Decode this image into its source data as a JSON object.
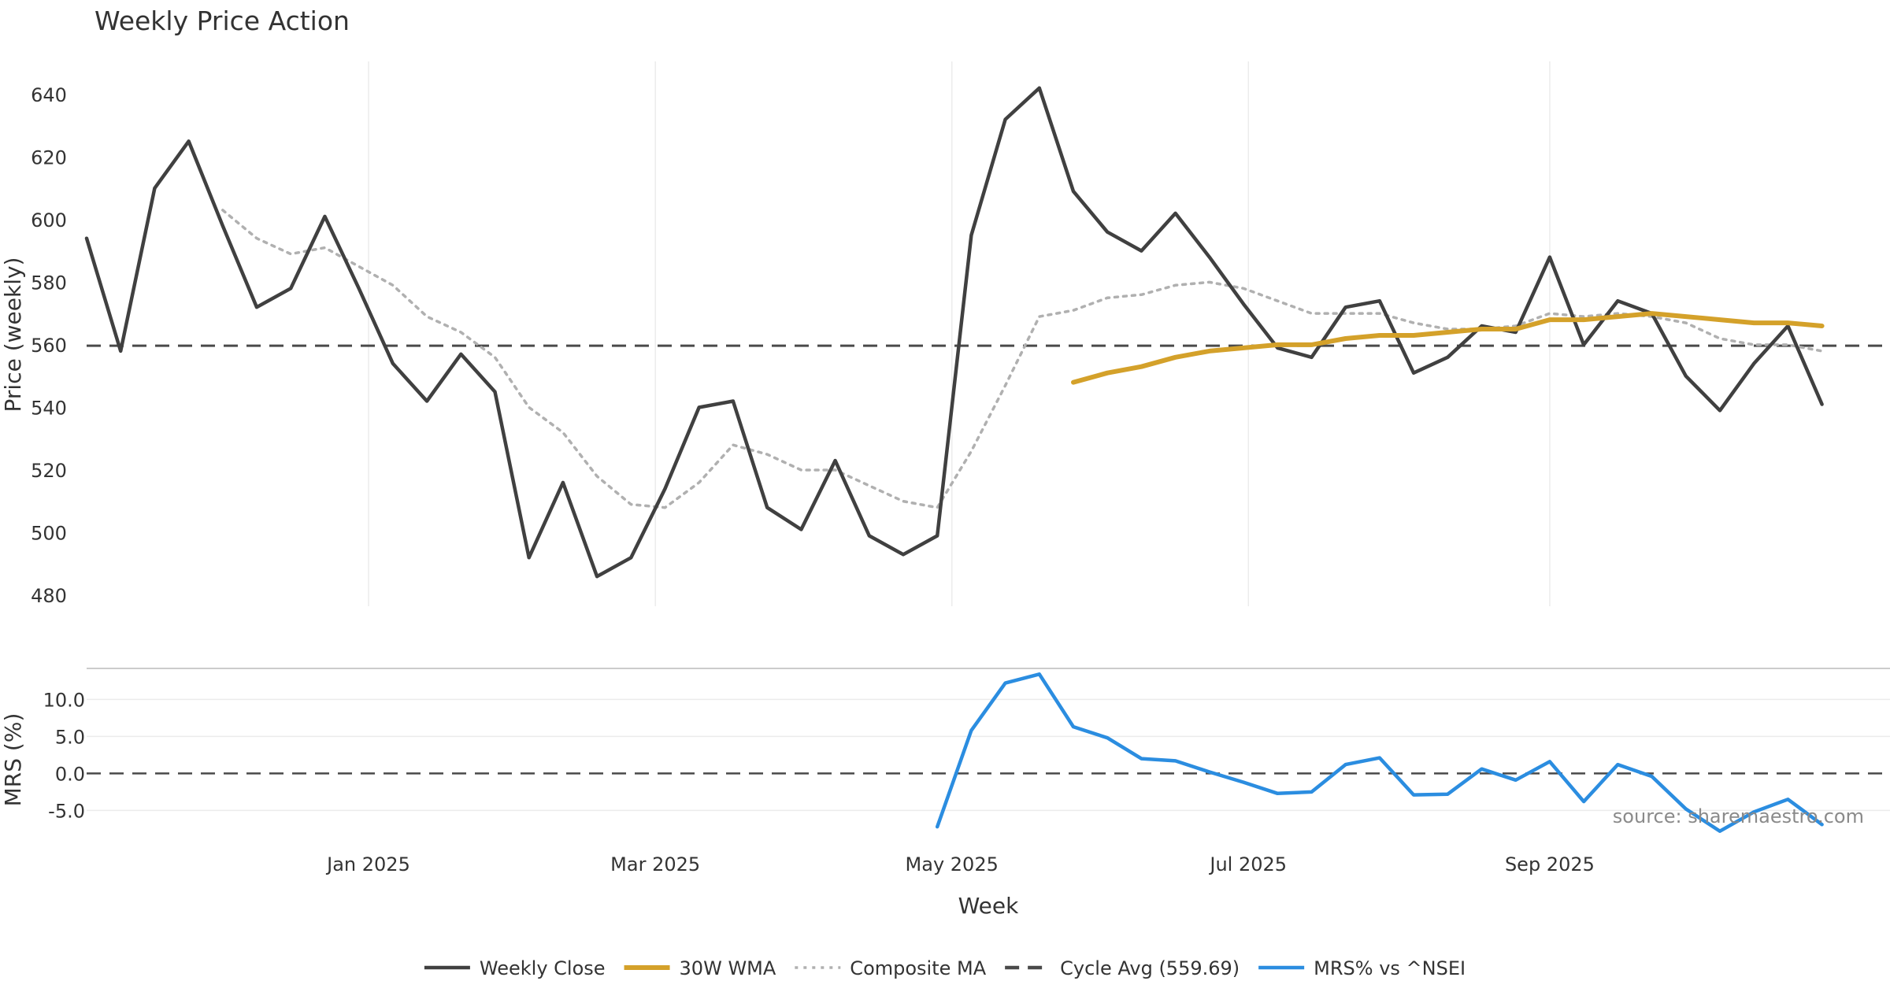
{
  "chart_data": {
    "type": "line",
    "title": "Weekly Price Action",
    "source": "source: sharemaestro.com",
    "xlabel": "Week",
    "x_ticks": [
      "Jan 2025",
      "Mar 2025",
      "May 2025",
      "Jul 2025",
      "Sep 2025"
    ],
    "x_tick_dates": [
      "2025-01-01",
      "2025-03-01",
      "2025-05-01",
      "2025-07-01",
      "2025-09-01"
    ],
    "x_range": [
      "2024-11-04",
      "2025-11-10"
    ],
    "grid": "vertical lines at month ticks; horizontal lines in lower panel",
    "legend_position": "bottom-center",
    "colors": {
      "weekly_close": "#404040",
      "wma30": "#d4a12a",
      "composite_ma": "#b0b0b0",
      "cycle_avg": "#4a4a4a",
      "mrs": "#2b8de0"
    },
    "price_panel": {
      "ylabel": "Price (weekly)",
      "ylim": [
        478,
        650
      ],
      "y_ticks": [
        480,
        500,
        520,
        540,
        560,
        580,
        600,
        620,
        640
      ],
      "cycle_avg": 559.69,
      "series": [
        {
          "key": "weekly_close",
          "name": "Weekly Close",
          "style": "solid",
          "points": [
            [
              "2024-11-04",
              594
            ],
            [
              "2024-11-11",
              558
            ],
            [
              "2024-11-18",
              610
            ],
            [
              "2024-11-25",
              625
            ],
            [
              "2024-12-02",
              598
            ],
            [
              "2024-12-09",
              572
            ],
            [
              "2024-12-16",
              578
            ],
            [
              "2024-12-23",
              601
            ],
            [
              "2024-12-30",
              578
            ],
            [
              "2025-01-06",
              554
            ],
            [
              "2025-01-13",
              542
            ],
            [
              "2025-01-20",
              557
            ],
            [
              "2025-01-27",
              545
            ],
            [
              "2025-02-03",
              492
            ],
            [
              "2025-02-10",
              516
            ],
            [
              "2025-02-17",
              486
            ],
            [
              "2025-02-24",
              492
            ],
            [
              "2025-03-03",
              514
            ],
            [
              "2025-03-10",
              540
            ],
            [
              "2025-03-17",
              542
            ],
            [
              "2025-03-24",
              508
            ],
            [
              "2025-03-31",
              501
            ],
            [
              "2025-04-07",
              523
            ],
            [
              "2025-04-14",
              499
            ],
            [
              "2025-04-21",
              493
            ],
            [
              "2025-04-28",
              499
            ],
            [
              "2025-05-05",
              595
            ],
            [
              "2025-05-12",
              632
            ],
            [
              "2025-05-19",
              642
            ],
            [
              "2025-05-26",
              609
            ],
            [
              "2025-06-02",
              596
            ],
            [
              "2025-06-09",
              590
            ],
            [
              "2025-06-16",
              602
            ],
            [
              "2025-06-23",
              588
            ],
            [
              "2025-06-30",
              573
            ],
            [
              "2025-07-07",
              559
            ],
            [
              "2025-07-14",
              556
            ],
            [
              "2025-07-21",
              572
            ],
            [
              "2025-07-28",
              574
            ],
            [
              "2025-08-04",
              551
            ],
            [
              "2025-08-11",
              556
            ],
            [
              "2025-08-18",
              566
            ],
            [
              "2025-08-25",
              564
            ],
            [
              "2025-09-01",
              588
            ],
            [
              "2025-09-08",
              560
            ],
            [
              "2025-09-15",
              574
            ],
            [
              "2025-09-22",
              570
            ],
            [
              "2025-09-29",
              550
            ],
            [
              "2025-10-06",
              539
            ],
            [
              "2025-10-13",
              554
            ],
            [
              "2025-10-20",
              566
            ],
            [
              "2025-10-27",
              541
            ]
          ]
        },
        {
          "key": "composite_ma",
          "name": "Composite MA",
          "style": "dotted",
          "points": [
            [
              "2024-12-02",
              603
            ],
            [
              "2024-12-09",
              594
            ],
            [
              "2024-12-16",
              589
            ],
            [
              "2024-12-23",
              591
            ],
            [
              "2024-12-30",
              585
            ],
            [
              "2025-01-06",
              579
            ],
            [
              "2025-01-13",
              569
            ],
            [
              "2025-01-20",
              564
            ],
            [
              "2025-01-27",
              556
            ],
            [
              "2025-02-03",
              540
            ],
            [
              "2025-02-10",
              532
            ],
            [
              "2025-02-17",
              518
            ],
            [
              "2025-02-24",
              509
            ],
            [
              "2025-03-03",
              508
            ],
            [
              "2025-03-10",
              516
            ],
            [
              "2025-03-17",
              528
            ],
            [
              "2025-03-24",
              525
            ],
            [
              "2025-03-31",
              520
            ],
            [
              "2025-04-07",
              520
            ],
            [
              "2025-04-14",
              515
            ],
            [
              "2025-04-21",
              510
            ],
            [
              "2025-04-28",
              508
            ],
            [
              "2025-05-05",
              526
            ],
            [
              "2025-05-12",
              547
            ],
            [
              "2025-05-19",
              569
            ],
            [
              "2025-05-26",
              571
            ],
            [
              "2025-06-02",
              575
            ],
            [
              "2025-06-09",
              576
            ],
            [
              "2025-06-16",
              579
            ],
            [
              "2025-06-23",
              580
            ],
            [
              "2025-06-30",
              578
            ],
            [
              "2025-07-07",
              574
            ],
            [
              "2025-07-14",
              570
            ],
            [
              "2025-07-21",
              570
            ],
            [
              "2025-07-28",
              570
            ],
            [
              "2025-08-04",
              567
            ],
            [
              "2025-08-11",
              565
            ],
            [
              "2025-08-18",
              565
            ],
            [
              "2025-08-25",
              566
            ],
            [
              "2025-09-01",
              570
            ],
            [
              "2025-09-08",
              569
            ],
            [
              "2025-09-15",
              570
            ],
            [
              "2025-09-22",
              569
            ],
            [
              "2025-09-29",
              567
            ],
            [
              "2025-10-06",
              562
            ],
            [
              "2025-10-13",
              560
            ],
            [
              "2025-10-20",
              560
            ],
            [
              "2025-10-27",
              558
            ]
          ]
        },
        {
          "key": "wma30",
          "name": "30W WMA",
          "style": "solid",
          "points": [
            [
              "2025-05-26",
              548
            ],
            [
              "2025-06-02",
              551
            ],
            [
              "2025-06-09",
              553
            ],
            [
              "2025-06-16",
              556
            ],
            [
              "2025-06-23",
              558
            ],
            [
              "2025-06-30",
              559
            ],
            [
              "2025-07-07",
              560
            ],
            [
              "2025-07-14",
              560
            ],
            [
              "2025-07-21",
              562
            ],
            [
              "2025-07-28",
              563
            ],
            [
              "2025-08-04",
              563
            ],
            [
              "2025-08-11",
              564
            ],
            [
              "2025-08-18",
              565
            ],
            [
              "2025-08-25",
              565
            ],
            [
              "2025-09-01",
              568
            ],
            [
              "2025-09-08",
              568
            ],
            [
              "2025-09-15",
              569
            ],
            [
              "2025-09-22",
              570
            ],
            [
              "2025-09-29",
              569
            ],
            [
              "2025-10-06",
              568
            ],
            [
              "2025-10-13",
              567
            ],
            [
              "2025-10-20",
              567
            ],
            [
              "2025-10-27",
              566
            ]
          ]
        }
      ]
    },
    "mrs_panel": {
      "ylabel": "MRS (%)",
      "ylim": [
        -9,
        14.5
      ],
      "y_ticks": [
        -5.0,
        0.0,
        5.0,
        10.0
      ],
      "y_tick_labels": [
        "-5.0",
        "0.0",
        "5.0",
        "10.0"
      ],
      "zero_line": 0,
      "series": [
        {
          "key": "mrs",
          "name": "MRS% vs ^NSEI",
          "style": "solid",
          "points": [
            [
              "2025-04-28",
              -7.2
            ],
            [
              "2025-05-05",
              5.8
            ],
            [
              "2025-05-12",
              12.2
            ],
            [
              "2025-05-19",
              13.4
            ],
            [
              "2025-05-26",
              6.3
            ],
            [
              "2025-06-02",
              4.8
            ],
            [
              "2025-06-09",
              2.0
            ],
            [
              "2025-06-16",
              1.7
            ],
            [
              "2025-06-23",
              0.2
            ],
            [
              "2025-06-30",
              -1.2
            ],
            [
              "2025-07-07",
              -2.7
            ],
            [
              "2025-07-14",
              -2.5
            ],
            [
              "2025-07-21",
              1.2
            ],
            [
              "2025-07-28",
              2.1
            ],
            [
              "2025-08-04",
              -2.9
            ],
            [
              "2025-08-11",
              -2.8
            ],
            [
              "2025-08-18",
              0.6
            ],
            [
              "2025-08-25",
              -0.9
            ],
            [
              "2025-09-01",
              1.6
            ],
            [
              "2025-09-08",
              -3.8
            ],
            [
              "2025-09-15",
              1.2
            ],
            [
              "2025-09-22",
              -0.4
            ],
            [
              "2025-09-29",
              -4.8
            ],
            [
              "2025-10-06",
              -7.8
            ],
            [
              "2025-10-13",
              -5.2
            ],
            [
              "2025-10-20",
              -3.5
            ],
            [
              "2025-10-27",
              -6.9
            ]
          ]
        }
      ]
    },
    "legend": [
      {
        "key": "weekly_close",
        "label": "Weekly Close",
        "style": "solid"
      },
      {
        "key": "wma30",
        "label": "30W WMA",
        "style": "solid"
      },
      {
        "key": "composite_ma",
        "label": "Composite MA",
        "style": "dotted"
      },
      {
        "key": "cycle_avg",
        "label": "Cycle Avg (559.69)",
        "style": "dashed"
      },
      {
        "key": "mrs",
        "label": "MRS% vs ^NSEI",
        "style": "solid"
      }
    ]
  }
}
